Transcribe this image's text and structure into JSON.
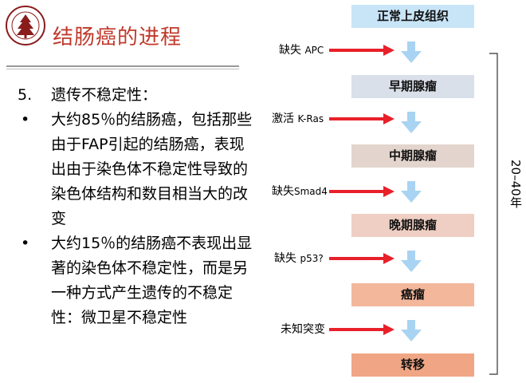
{
  "title": "结肠癌的进程",
  "bullets": [
    {
      "marker": "5.",
      "text": "遗传不稳定性："
    },
    {
      "marker": "•",
      "text": "大约85％的结肠癌，包括那些由于FAP引起的结肠癌，表现出由于染色体不稳定性导致的染色体结构和数目相当大的改变"
    },
    {
      "marker": "•",
      "text": "大约15％的结肠癌不表现出显著的染色体不稳定性，而是另一种方式产生遗传的不稳定性：微卫星不稳定性"
    }
  ],
  "stages": [
    {
      "label": "正常上皮组织",
      "color": "#c8e4f7"
    },
    {
      "label": "早期腺瘤",
      "color": "#d9e0ea"
    },
    {
      "label": "中期腺瘤",
      "color": "#e3d5ce"
    },
    {
      "label": "晚期腺瘤",
      "color": "#efcfc3"
    },
    {
      "label": "癌瘤",
      "color": "#f3b79c"
    },
    {
      "label": "转移",
      "color": "#f0a684"
    }
  ],
  "mutations": [
    {
      "cn": "缺失",
      "gene": "APC"
    },
    {
      "cn": "激活",
      "gene": "K-Ras"
    },
    {
      "cn": "缺失",
      "gene": "Smad4"
    },
    {
      "cn": "缺失",
      "gene": "p53?"
    },
    {
      "cn": "未知突变",
      "gene": ""
    }
  ],
  "timespan": "20–40年",
  "colors": {
    "title": "#c0392b",
    "arrow_red": "#e8202a",
    "arrow_blue": "#a9d3f2"
  }
}
